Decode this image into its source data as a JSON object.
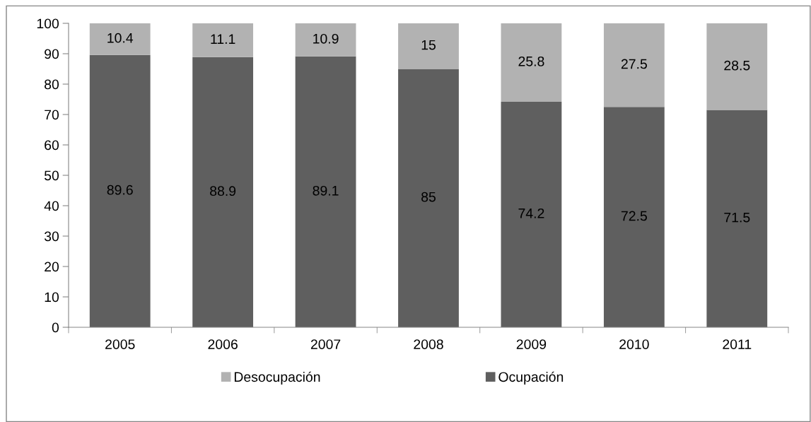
{
  "chart_data": {
    "type": "bar",
    "stacked": true,
    "categories": [
      "2005",
      "2006",
      "2007",
      "2008",
      "2009",
      "2010",
      "2011"
    ],
    "series": [
      {
        "name": "Ocupación",
        "color": "#5f5f5f",
        "values": [
          89.6,
          88.9,
          89.1,
          85,
          74.2,
          72.5,
          71.5
        ]
      },
      {
        "name": "Desocupación",
        "color": "#b2b2b2",
        "values": [
          10.4,
          11.1,
          10.9,
          15,
          25.8,
          27.5,
          28.5
        ]
      }
    ],
    "ylim": [
      0,
      100
    ],
    "yticks": [
      0,
      10,
      20,
      30,
      40,
      50,
      60,
      70,
      80,
      90,
      100
    ],
    "grid": false,
    "legend": "bottom",
    "data_labels": true
  }
}
